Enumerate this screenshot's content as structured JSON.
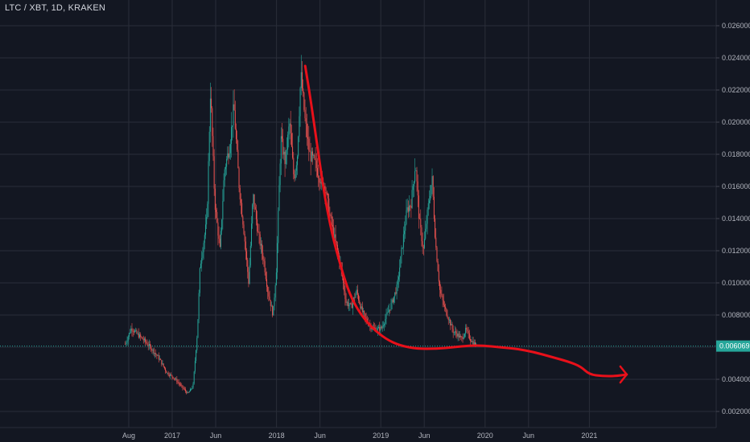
{
  "chart_data": {
    "type": "line",
    "title": "LTC / XBT, 1D, KRAKEN",
    "ylim": [
      0.001,
      0.027
    ],
    "y_ticks": [
      "0.002000",
      "0.004000",
      "0.006000",
      "0.008000",
      "0.010000",
      "0.012000",
      "0.014000",
      "0.016000",
      "0.018000",
      "0.020000",
      "0.022000",
      "0.024000",
      "0.026000"
    ],
    "x_ticks": [
      {
        "label": "Aug",
        "t": 0
      },
      {
        "label": "2017",
        "t": 5
      },
      {
        "label": "Jun",
        "t": 10
      },
      {
        "label": "2018",
        "t": 17
      },
      {
        "label": "Jun",
        "t": 22
      },
      {
        "label": "2019",
        "t": 29
      },
      {
        "label": "Jun",
        "t": 34
      },
      {
        "label": "2020",
        "t": 41
      },
      {
        "label": "Jun",
        "t": 46
      },
      {
        "label": "2021",
        "t": 53
      }
    ],
    "current_price": "0.006069",
    "current_price_value": 0.006069,
    "colors": {
      "background": "#131722",
      "grid": "#2a2e39",
      "up": "#26a69a",
      "down": "#ef5350",
      "annotation": "#e8101a",
      "price_line": "#26a69a",
      "axis_text": "#b2b5be"
    },
    "series": [
      {
        "values": [
          [
            -0.4,
            0.0062
          ],
          [
            0.3,
            0.0072
          ],
          [
            1.0,
            0.0068
          ],
          [
            1.8,
            0.0064
          ],
          [
            2.8,
            0.0058
          ],
          [
            3.6,
            0.0052
          ],
          [
            4.4,
            0.0044
          ],
          [
            5.2,
            0.0041
          ],
          [
            6.0,
            0.0036
          ],
          [
            6.8,
            0.0031
          ],
          [
            7.4,
            0.0036
          ],
          [
            7.9,
            0.007
          ],
          [
            8.2,
            0.011
          ],
          [
            8.6,
            0.0125
          ],
          [
            9.0,
            0.014
          ],
          [
            9.4,
            0.022
          ],
          [
            9.9,
            0.015
          ],
          [
            10.5,
            0.012
          ],
          [
            11.0,
            0.017
          ],
          [
            11.6,
            0.0185
          ],
          [
            12.1,
            0.021
          ],
          [
            12.7,
            0.016
          ],
          [
            13.2,
            0.0135
          ],
          [
            13.8,
            0.01
          ],
          [
            14.3,
            0.0155
          ],
          [
            14.9,
            0.013
          ],
          [
            15.5,
            0.0115
          ],
          [
            16.0,
            0.0095
          ],
          [
            16.6,
            0.008
          ],
          [
            17.0,
            0.011
          ],
          [
            17.5,
            0.019
          ],
          [
            18.0,
            0.0175
          ],
          [
            18.5,
            0.02
          ],
          [
            19.0,
            0.0165
          ],
          [
            19.4,
            0.018
          ],
          [
            19.8,
            0.023
          ],
          [
            20.3,
            0.02
          ],
          [
            20.8,
            0.018
          ],
          [
            21.4,
            0.0175
          ],
          [
            22.0,
            0.0165
          ],
          [
            22.6,
            0.016
          ],
          [
            23.2,
            0.014
          ],
          [
            23.8,
            0.0125
          ],
          [
            24.4,
            0.011
          ],
          [
            25.0,
            0.0088
          ],
          [
            25.6,
            0.0085
          ],
          [
            26.2,
            0.0095
          ],
          [
            26.8,
            0.0083
          ],
          [
            27.4,
            0.0076
          ],
          [
            28.0,
            0.0072
          ],
          [
            28.6,
            0.0071
          ],
          [
            29.1,
            0.0072
          ],
          [
            29.7,
            0.008
          ],
          [
            30.3,
            0.0088
          ],
          [
            30.9,
            0.0098
          ],
          [
            31.4,
            0.012
          ],
          [
            32.0,
            0.0145
          ],
          [
            32.5,
            0.015
          ],
          [
            33.0,
            0.0175
          ],
          [
            33.4,
            0.014
          ],
          [
            33.9,
            0.012
          ],
          [
            34.4,
            0.0145
          ],
          [
            34.9,
            0.0165
          ],
          [
            35.3,
            0.0125
          ],
          [
            35.8,
            0.0095
          ],
          [
            36.3,
            0.0085
          ],
          [
            36.8,
            0.0078
          ],
          [
            37.3,
            0.007
          ],
          [
            37.8,
            0.0068
          ],
          [
            38.3,
            0.0065
          ],
          [
            38.8,
            0.0071
          ],
          [
            39.2,
            0.0066
          ],
          [
            39.6,
            0.0063
          ],
          [
            40.0,
            0.0061
          ]
        ]
      }
    ],
    "annotation_curve": [
      [
        20.3,
        0.0235
      ],
      [
        20.9,
        0.0215
      ],
      [
        21.7,
        0.0185
      ],
      [
        22.5,
        0.0155
      ],
      [
        23.4,
        0.013
      ],
      [
        24.4,
        0.011
      ],
      [
        25.4,
        0.0093
      ],
      [
        26.6,
        0.0081
      ],
      [
        28.0,
        0.0072
      ],
      [
        29.6,
        0.0065
      ],
      [
        31.2,
        0.0061
      ],
      [
        33.2,
        0.0059
      ],
      [
        35.4,
        0.0059
      ],
      [
        37.4,
        0.006
      ],
      [
        39.2,
        0.0061
      ],
      [
        40.8,
        0.0061
      ],
      [
        42.6,
        0.006
      ],
      [
        44.6,
        0.0059
      ],
      [
        46.6,
        0.0057
      ],
      [
        48.6,
        0.0054
      ],
      [
        50.6,
        0.0051
      ],
      [
        52.0,
        0.0048
      ],
      [
        53.0,
        0.0043
      ],
      [
        54.5,
        0.0042
      ],
      [
        56.0,
        0.0042
      ],
      [
        57.3,
        0.0043
      ]
    ]
  }
}
